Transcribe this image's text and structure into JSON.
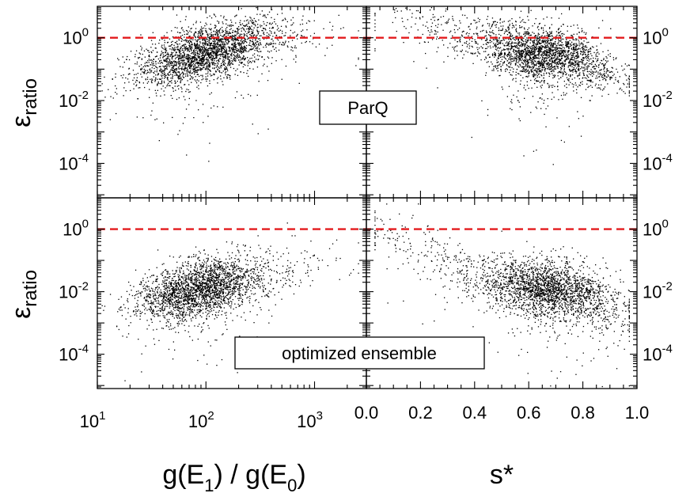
{
  "chart_data": {
    "type": "scatter",
    "layout": "2x2 grid with shared axes",
    "y_scale": "log",
    "ylabel": "ε_ratio",
    "ylabel_main": "ε",
    "ylabel_sub": "ratio",
    "ylim": [
      8e-06,
      10
    ],
    "y_ticks": [
      {
        "exp": "0",
        "value": 1
      },
      {
        "exp": "-2",
        "value": 0.01
      },
      {
        "exp": "-4",
        "value": 0.0001
      }
    ],
    "y_tick_base": "10",
    "reference_line": {
      "y": 1,
      "style": "dashed",
      "color": "#e31a1c"
    },
    "point_color": "#000000",
    "columns": [
      {
        "key": "g",
        "xlabel": "g(E₁) / g(E₀)",
        "xlabel_parts": {
          "g1": "g(E",
          "sub1": "1",
          "mid": ") / g(E",
          "sub0": "0",
          "end": ")"
        },
        "x_scale": "log",
        "xlim": [
          10,
          3000
        ],
        "x_ticks": [
          {
            "base": "10",
            "exp": "1",
            "value": 10
          },
          {
            "base": "10",
            "exp": "2",
            "value": 100
          },
          {
            "base": "10",
            "exp": "3",
            "value": 1000
          }
        ]
      },
      {
        "key": "s",
        "xlabel": "s*",
        "x_scale": "linear",
        "xlim": [
          0,
          1
        ],
        "x_ticks": [
          {
            "label": "0.0",
            "value": 0
          },
          {
            "label": "0.2",
            "value": 0.2
          },
          {
            "label": "0.4",
            "value": 0.4
          },
          {
            "label": "0.6",
            "value": 0.6
          },
          {
            "label": "0.8",
            "value": 0.8
          },
          {
            "label": "1.0",
            "value": 1
          }
        ]
      }
    ],
    "rows": [
      {
        "label": "ParQ",
        "n_points": 2600,
        "g_trend": {
          "log_x_center": 1.95,
          "log_x_spread": 0.3,
          "base_log_y": -0.5,
          "slope": 0.9,
          "plateau_log_y": 0.1,
          "y_spread": 0.42
        },
        "s_trend": {
          "center": 0.68,
          "spread": 0.12,
          "peak_log_y": -0.55,
          "y_spread": 0.42
        }
      },
      {
        "label": "optimized ensemble",
        "n_points": 2600,
        "g_trend": {
          "log_x_center": 1.9,
          "log_x_spread": 0.28,
          "base_log_y": -1.9,
          "slope": 0.7,
          "plateau_log_y": -1.0,
          "y_spread": 0.45
        },
        "s_trend": {
          "center": 0.7,
          "spread": 0.12,
          "peak_log_y": -1.95,
          "y_spread": 0.45
        }
      }
    ]
  }
}
